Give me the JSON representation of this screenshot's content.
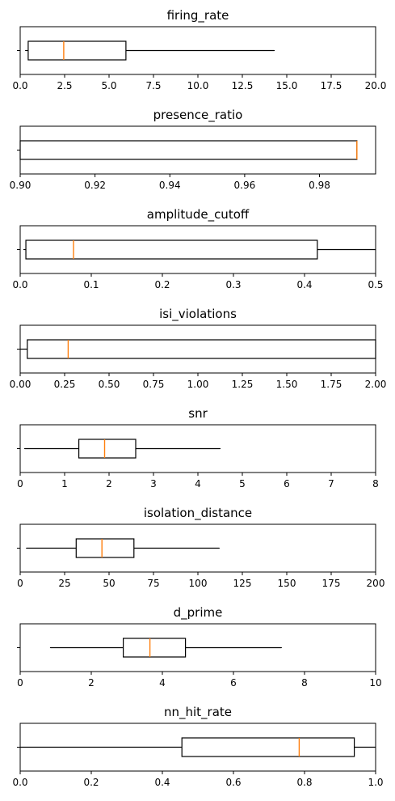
{
  "chart_data": [
    {
      "type": "boxplot",
      "orientation": "horizontal",
      "title": "firing_rate",
      "xlim": [
        0,
        20
      ],
      "ticks": [
        0,
        2.5,
        5,
        7.5,
        10,
        12.5,
        15,
        17.5,
        20
      ],
      "tick_labels": [
        "0.0",
        "2.5",
        "5.0",
        "7.5",
        "10.0",
        "12.5",
        "15.0",
        "17.5",
        "20.0"
      ],
      "box": {
        "whisker_low": 0.3,
        "q1": 0.45,
        "median": 2.45,
        "q3": 5.95,
        "whisker_high": 14.3
      }
    },
    {
      "type": "boxplot",
      "orientation": "horizontal",
      "title": "presence_ratio",
      "xlim": [
        0.9,
        0.995
      ],
      "ticks": [
        0.9,
        0.92,
        0.94,
        0.96,
        0.98
      ],
      "tick_labels": [
        "0.90",
        "0.92",
        "0.94",
        "0.96",
        "0.98"
      ],
      "box": {
        "whisker_low": 0.9,
        "q1": 0.9,
        "median": 0.99,
        "q3": 0.99,
        "whisker_high": 0.99
      }
    },
    {
      "type": "boxplot",
      "orientation": "horizontal",
      "title": "amplitude_cutoff",
      "xlim": [
        0,
        0.5
      ],
      "ticks": [
        0,
        0.1,
        0.2,
        0.3,
        0.4,
        0.5
      ],
      "tick_labels": [
        "0.0",
        "0.1",
        "0.2",
        "0.3",
        "0.4",
        "0.5"
      ],
      "box": {
        "whisker_low": 0.005,
        "q1": 0.008,
        "median": 0.075,
        "q3": 0.418,
        "whisker_high": 0.5
      }
    },
    {
      "type": "boxplot",
      "orientation": "horizontal",
      "title": "isi_violations",
      "xlim": [
        0,
        2
      ],
      "ticks": [
        0,
        0.25,
        0.5,
        0.75,
        1.0,
        1.25,
        1.5,
        1.75,
        2.0
      ],
      "tick_labels": [
        "0.00",
        "0.25",
        "0.50",
        "0.75",
        "1.00",
        "1.25",
        "1.50",
        "1.75",
        "2.00"
      ],
      "box": {
        "whisker_low": 0.0,
        "q1": 0.04,
        "median": 0.27,
        "q3": 2.0,
        "whisker_high": 2.0
      }
    },
    {
      "type": "boxplot",
      "orientation": "horizontal",
      "title": "snr",
      "xlim": [
        0,
        8
      ],
      "ticks": [
        0,
        1,
        2,
        3,
        4,
        5,
        6,
        7,
        8
      ],
      "tick_labels": [
        "0",
        "1",
        "2",
        "3",
        "4",
        "5",
        "6",
        "7",
        "8"
      ],
      "box": {
        "whisker_low": 0.1,
        "q1": 1.32,
        "median": 1.9,
        "q3": 2.6,
        "whisker_high": 4.5
      }
    },
    {
      "type": "boxplot",
      "orientation": "horizontal",
      "title": "isolation_distance",
      "xlim": [
        0,
        200
      ],
      "ticks": [
        0,
        25,
        50,
        75,
        100,
        125,
        150,
        175,
        200
      ],
      "tick_labels": [
        "0",
        "25",
        "50",
        "75",
        "100",
        "125",
        "150",
        "175",
        "200"
      ],
      "box": {
        "whisker_low": 3.5,
        "q1": 31.5,
        "median": 46,
        "q3": 64,
        "whisker_high": 112
      }
    },
    {
      "type": "boxplot",
      "orientation": "horizontal",
      "title": "d_prime",
      "xlim": [
        0,
        10
      ],
      "ticks": [
        0,
        2,
        4,
        6,
        8,
        10
      ],
      "tick_labels": [
        "0",
        "2",
        "4",
        "6",
        "8",
        "10"
      ],
      "box": {
        "whisker_low": 0.85,
        "q1": 2.9,
        "median": 3.65,
        "q3": 4.65,
        "whisker_high": 7.35
      }
    },
    {
      "type": "boxplot",
      "orientation": "horizontal",
      "title": "nn_hit_rate",
      "xlim": [
        0,
        1
      ],
      "ticks": [
        0,
        0.2,
        0.4,
        0.6,
        0.8,
        1.0
      ],
      "tick_labels": [
        "0.0",
        "0.2",
        "0.4",
        "0.6",
        "0.8",
        "1.0"
      ],
      "box": {
        "whisker_low": 0.0,
        "q1": 0.455,
        "median": 0.785,
        "q3": 0.94,
        "whisker_high": 1.0
      }
    }
  ],
  "colors": {
    "box": "#000000",
    "median": "#ff7f0e",
    "background": "#ffffff"
  }
}
